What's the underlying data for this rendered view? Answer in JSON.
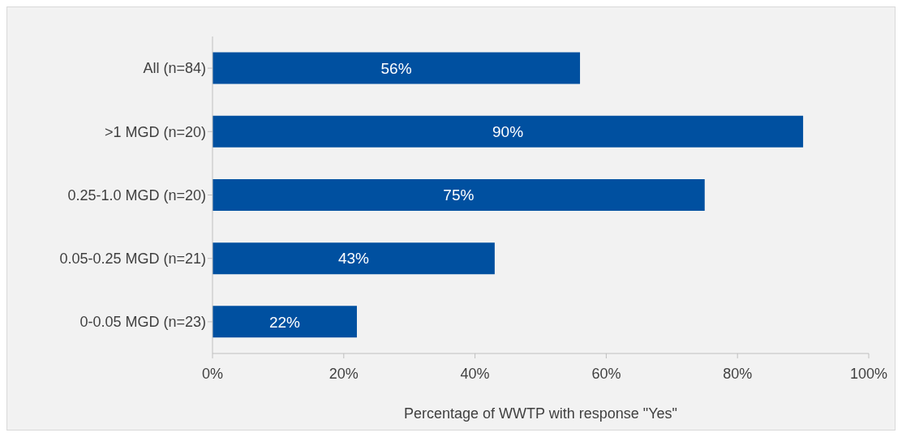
{
  "chart_data": {
    "type": "bar",
    "orientation": "horizontal",
    "xlabel": "Percentage of WWTP with response \"Yes\"",
    "categories": [
      "All (n=84)",
      ">1 MGD (n=20)",
      "0.25-1.0 MGD (n=20)",
      "0.05-0.25 MGD (n=21)",
      "0-0.05 MGD (n=23)"
    ],
    "values": [
      56,
      90,
      75,
      43,
      22
    ],
    "value_labels": [
      "56%",
      "90%",
      "75%",
      "43%",
      "22%"
    ],
    "color": "#0050a0",
    "xlim": [
      0,
      100
    ],
    "xticks": [
      {
        "value": 0,
        "label": "0%"
      },
      {
        "value": 20,
        "label": "20%"
      },
      {
        "value": 40,
        "label": "40%"
      },
      {
        "value": 60,
        "label": "60%"
      },
      {
        "value": 80,
        "label": "80%"
      },
      {
        "value": 100,
        "label": "100%"
      }
    ],
    "grid": false,
    "legend": false
  }
}
